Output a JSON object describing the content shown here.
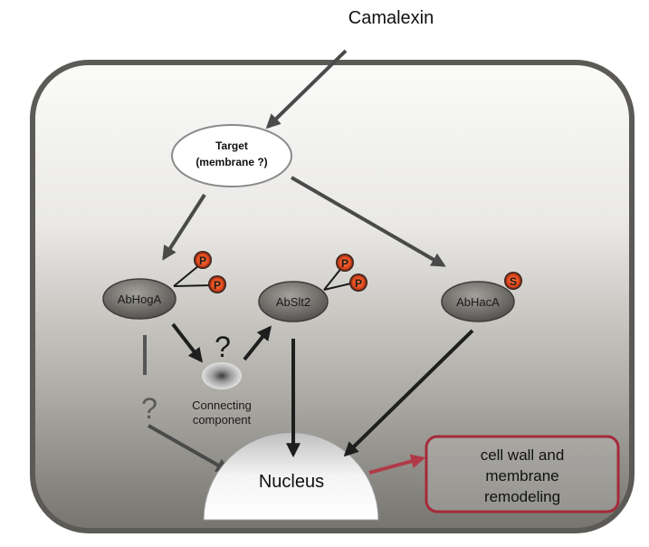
{
  "stimulus": {
    "label": "Camalexin"
  },
  "target": {
    "line1": "Target",
    "line2": "(membrane ?)"
  },
  "proteins": {
    "hoga": {
      "label": "AbHogA",
      "marks": [
        "P",
        "P"
      ]
    },
    "slt2": {
      "label": "AbSlt2",
      "marks": [
        "P",
        "P"
      ]
    },
    "haca": {
      "label": "AbHacA",
      "marks": [
        "S"
      ]
    }
  },
  "connector": {
    "question": "?",
    "line1": "Connecting",
    "line2": "component"
  },
  "hog_question": "?",
  "nucleus": {
    "label": "Nucleus"
  },
  "outcome": {
    "line1": "cell wall and",
    "line2": "membrane",
    "line3": "remodeling"
  },
  "colors": {
    "arrow": "#4a4a4a",
    "outcome_arrow": "#b03a48",
    "outcome_border": "#a52a3a",
    "marker_fill": "#e2461c",
    "cell_border": "#555555"
  }
}
